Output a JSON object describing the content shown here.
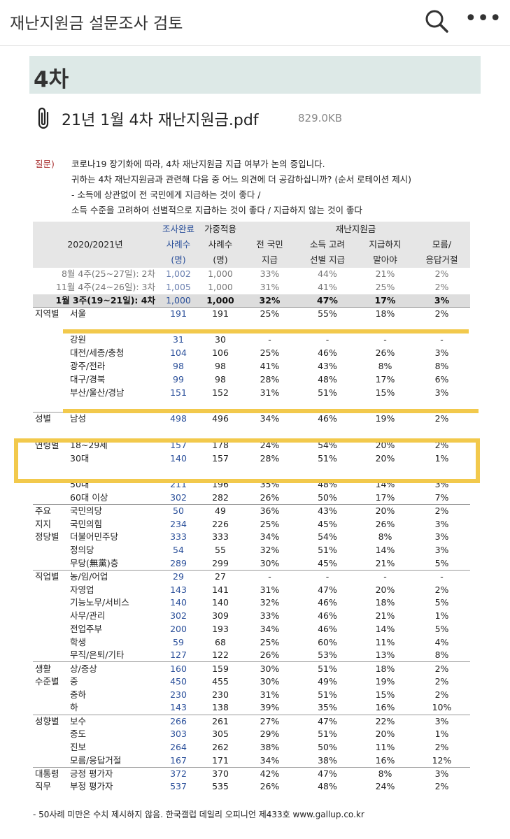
{
  "app": {
    "title": "재난지원금 설문조사 검토",
    "search_icon": "search-icon",
    "more_icon": "more-icon"
  },
  "section": {
    "title": "4차"
  },
  "attachment": {
    "filename": "21년 1월 4차 재난지원금.pdf",
    "size": "829.0KB"
  },
  "question": {
    "label": "질문)",
    "lines": [
      "코로나19 장기화에 따라, 4차 재난지원금 지급 여부가 논의 중입니다.",
      "귀하는 4차 재난지원금과 관련해 다음 중 어느 의견에 더 공감하십니까? (순서 로테이션 제시)",
      "- 소득에 상관없이 전 국민에게 지급하는 것이 좋다 /",
      " 소득 수준을 고려하여 선별적으로 지급하는 것이 좋다  /  지급하지 않는 것이 좋다"
    ]
  },
  "table": {
    "header": {
      "period": "2020/2021년",
      "n_done_top": "조사완료",
      "n_done_mid": "사례수",
      "n_done_bot": "(명)",
      "n_w_top": "가중적용",
      "n_w_mid": "사례수",
      "n_w_bot": "(명)",
      "group": "재난지원금",
      "col1_a": "전 국민",
      "col1_b": "지급",
      "col2_a": "소득 고려",
      "col2_b": "선별 지급",
      "col3_a": "지급하지",
      "col3_b": "말아야",
      "col4_a": "모름/",
      "col4_b": "응답거절"
    },
    "rows": [
      {
        "kind": "prev",
        "grp": "",
        "sub": "8월 4주(25~27일): 2차",
        "n1": "1,002",
        "n2": "1,000",
        "p1": "33%",
        "p2": "44%",
        "p3": "21%",
        "p4": "2%"
      },
      {
        "kind": "prev",
        "grp": "",
        "sub": "11월 4주(24~26일): 3차",
        "n1": "1,005",
        "n2": "1,000",
        "p1": "31%",
        "p2": "41%",
        "p3": "25%",
        "p4": "2%"
      },
      {
        "kind": "total",
        "grp": "",
        "sub": "1월 3주(19~21일): 4차",
        "n1": "1,000",
        "n2": "1,000",
        "p1": "32%",
        "p2": "47%",
        "p3": "17%",
        "p4": "3%"
      },
      {
        "kind": "start",
        "grp": "지역별",
        "sub": "서울",
        "n1": "191",
        "n2": "191",
        "p1": "25%",
        "p2": "55%",
        "p3": "18%",
        "p4": "2%"
      },
      {
        "kind": "",
        "grp": "",
        "sub": "",
        "n1": "",
        "n2": "",
        "p1": "",
        "p2": "",
        "p3": "",
        "p4": ""
      },
      {
        "kind": "",
        "grp": "",
        "sub": "강원",
        "n1": "31",
        "n2": "30",
        "p1": "-",
        "p2": "-",
        "p3": "-",
        "p4": "-"
      },
      {
        "kind": "",
        "grp": "",
        "sub": "대전/세종/충청",
        "n1": "104",
        "n2": "106",
        "p1": "25%",
        "p2": "46%",
        "p3": "26%",
        "p4": "3%"
      },
      {
        "kind": "",
        "grp": "",
        "sub": "광주/전라",
        "n1": "98",
        "n2": "98",
        "p1": "41%",
        "p2": "43%",
        "p3": "8%",
        "p4": "8%"
      },
      {
        "kind": "",
        "grp": "",
        "sub": "대구/경북",
        "n1": "99",
        "n2": "98",
        "p1": "28%",
        "p2": "48%",
        "p3": "17%",
        "p4": "6%"
      },
      {
        "kind": "",
        "grp": "",
        "sub": "부산/울산/경남",
        "n1": "151",
        "n2": "152",
        "p1": "31%",
        "p2": "51%",
        "p3": "15%",
        "p4": "3%"
      },
      {
        "kind": "",
        "grp": "",
        "sub": "",
        "n1": "",
        "n2": "",
        "p1": "",
        "p2": "",
        "p3": "",
        "p4": ""
      },
      {
        "kind": "start",
        "grp": "성별",
        "sub": "남성",
        "n1": "498",
        "n2": "496",
        "p1": "34%",
        "p2": "46%",
        "p3": "19%",
        "p4": "2%"
      },
      {
        "kind": "",
        "grp": "",
        "sub": "",
        "n1": "",
        "n2": "",
        "p1": "",
        "p2": "",
        "p3": "",
        "p4": ""
      },
      {
        "kind": "start",
        "grp": "연령별",
        "sub": "18~29세",
        "n1": "157",
        "n2": "178",
        "p1": "24%",
        "p2": "54%",
        "p3": "20%",
        "p4": "2%"
      },
      {
        "kind": "",
        "grp": "",
        "sub": "30대",
        "n1": "140",
        "n2": "157",
        "p1": "28%",
        "p2": "51%",
        "p3": "20%",
        "p4": "1%"
      },
      {
        "kind": "",
        "grp": "",
        "sub": "",
        "n1": "",
        "n2": "",
        "p1": "",
        "p2": "",
        "p3": "",
        "p4": ""
      },
      {
        "kind": "",
        "grp": "",
        "sub": "50대",
        "n1": "211",
        "n2": "196",
        "p1": "35%",
        "p2": "48%",
        "p3": "14%",
        "p4": "3%"
      },
      {
        "kind": "",
        "grp": "",
        "sub": "60대 이상",
        "n1": "302",
        "n2": "282",
        "p1": "26%",
        "p2": "50%",
        "p3": "17%",
        "p4": "7%"
      },
      {
        "kind": "start",
        "grp": "주요",
        "sub": "국민의당",
        "n1": "50",
        "n2": "49",
        "p1": "36%",
        "p2": "43%",
        "p3": "20%",
        "p4": "2%"
      },
      {
        "kind": "",
        "grp": "지지",
        "sub": "국민의힘",
        "n1": "234",
        "n2": "226",
        "p1": "25%",
        "p2": "45%",
        "p3": "26%",
        "p4": "3%"
      },
      {
        "kind": "",
        "grp": "정당별",
        "sub": "더불어민주당",
        "n1": "333",
        "n2": "333",
        "p1": "34%",
        "p2": "54%",
        "p3": "8%",
        "p4": "3%"
      },
      {
        "kind": "",
        "grp": "",
        "sub": "정의당",
        "n1": "54",
        "n2": "55",
        "p1": "32%",
        "p2": "51%",
        "p3": "14%",
        "p4": "3%"
      },
      {
        "kind": "",
        "grp": "",
        "sub": "무당(無黨)층",
        "n1": "289",
        "n2": "299",
        "p1": "30%",
        "p2": "45%",
        "p3": "21%",
        "p4": "5%"
      },
      {
        "kind": "start",
        "grp": "직업별",
        "sub": "농/임/어업",
        "n1": "29",
        "n2": "27",
        "p1": "-",
        "p2": "-",
        "p3": "-",
        "p4": "-"
      },
      {
        "kind": "",
        "grp": "",
        "sub": "자영업",
        "n1": "143",
        "n2": "141",
        "p1": "31%",
        "p2": "47%",
        "p3": "20%",
        "p4": "2%"
      },
      {
        "kind": "",
        "grp": "",
        "sub": "기능노무/서비스",
        "n1": "140",
        "n2": "140",
        "p1": "32%",
        "p2": "46%",
        "p3": "18%",
        "p4": "5%"
      },
      {
        "kind": "",
        "grp": "",
        "sub": "사무/관리",
        "n1": "302",
        "n2": "309",
        "p1": "33%",
        "p2": "46%",
        "p3": "21%",
        "p4": "1%"
      },
      {
        "kind": "",
        "grp": "",
        "sub": "전업주부",
        "n1": "200",
        "n2": "193",
        "p1": "34%",
        "p2": "46%",
        "p3": "14%",
        "p4": "5%"
      },
      {
        "kind": "",
        "grp": "",
        "sub": "학생",
        "n1": "59",
        "n2": "68",
        "p1": "25%",
        "p2": "60%",
        "p3": "11%",
        "p4": "4%"
      },
      {
        "kind": "",
        "grp": "",
        "sub": "무직/은퇴/기타",
        "n1": "127",
        "n2": "122",
        "p1": "26%",
        "p2": "53%",
        "p3": "13%",
        "p4": "8%"
      },
      {
        "kind": "start",
        "grp": "생활",
        "sub": "상/중상",
        "n1": "160",
        "n2": "159",
        "p1": "30%",
        "p2": "51%",
        "p3": "18%",
        "p4": "2%"
      },
      {
        "kind": "",
        "grp": "수준별",
        "sub": "중",
        "n1": "450",
        "n2": "455",
        "p1": "30%",
        "p2": "49%",
        "p3": "19%",
        "p4": "2%"
      },
      {
        "kind": "",
        "grp": "",
        "sub": "중하",
        "n1": "230",
        "n2": "230",
        "p1": "31%",
        "p2": "51%",
        "p3": "15%",
        "p4": "2%"
      },
      {
        "kind": "",
        "grp": "",
        "sub": "하",
        "n1": "143",
        "n2": "138",
        "p1": "39%",
        "p2": "35%",
        "p3": "16%",
        "p4": "10%"
      },
      {
        "kind": "start",
        "grp": "성향별",
        "sub": "보수",
        "n1": "266",
        "n2": "261",
        "p1": "27%",
        "p2": "47%",
        "p3": "22%",
        "p4": "3%"
      },
      {
        "kind": "",
        "grp": "",
        "sub": "중도",
        "n1": "303",
        "n2": "305",
        "p1": "29%",
        "p2": "51%",
        "p3": "20%",
        "p4": "1%"
      },
      {
        "kind": "",
        "grp": "",
        "sub": "진보",
        "n1": "264",
        "n2": "262",
        "p1": "38%",
        "p2": "50%",
        "p3": "11%",
        "p4": "2%"
      },
      {
        "kind": "",
        "grp": "",
        "sub": "모름/응답거절",
        "n1": "167",
        "n2": "171",
        "p1": "34%",
        "p2": "38%",
        "p3": "16%",
        "p4": "12%"
      },
      {
        "kind": "start",
        "grp": "대통령",
        "sub": "긍정 평가자",
        "n1": "372",
        "n2": "370",
        "p1": "42%",
        "p2": "47%",
        "p3": "8%",
        "p4": "3%"
      },
      {
        "kind": "",
        "grp": "직무",
        "sub": "부정 평가자",
        "n1": "537",
        "n2": "535",
        "p1": "26%",
        "p2": "48%",
        "p3": "24%",
        "p4": "2%"
      }
    ]
  },
  "footnote": "- 50사례 미만은 수치 제시하지 않음. 한국갤럽 데일리 오피니언 제433호 www.gallup.co.kr",
  "colors": {
    "highlight": "#f2c94c",
    "section_bg": "#dde9e7",
    "accent_blue": "#2a4f9a"
  }
}
